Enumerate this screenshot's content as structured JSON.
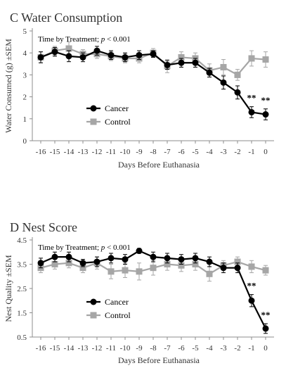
{
  "chart_data": [
    {
      "type": "line",
      "title": "C Water Consumption",
      "annotation": "Time by Treatment; p < 0.001",
      "annotation_prefix": "Time by Treatment; ",
      "annotation_italic": "p",
      "annotation_suffix": " < 0.001",
      "xlabel": "Days Before Euthanasia",
      "ylabel": "Water Consumed (g) ±SEM",
      "x": [
        -16,
        -15,
        -14,
        -13,
        -12,
        -11,
        -10,
        -9,
        -8,
        -7,
        -6,
        -5,
        -4,
        -3,
        -2,
        -1,
        0
      ],
      "x_tick_labels": [
        "-16",
        "-15",
        "-14",
        "-13",
        "-12",
        "-11",
        "-10",
        "-9",
        "-8",
        "-7",
        "-6",
        "-5",
        "-4",
        "-3",
        "-2",
        "-1",
        "0"
      ],
      "ylim": [
        0,
        5
      ],
      "y_ticks": [
        0,
        1,
        2,
        3,
        4,
        5
      ],
      "y_tick_labels": [
        "0",
        "1",
        "2",
        "3",
        "4",
        "5"
      ],
      "legend_position": "left-center",
      "series": [
        {
          "name": "Cancer",
          "color": "#000000",
          "marker": "circle",
          "values": [
            3.8,
            4.05,
            3.85,
            3.8,
            4.1,
            3.9,
            3.8,
            3.9,
            3.95,
            3.45,
            3.55,
            3.55,
            3.1,
            2.65,
            2.2,
            1.3,
            1.2
          ],
          "sem": [
            0.25,
            0.2,
            0.25,
            0.2,
            0.2,
            0.2,
            0.2,
            0.2,
            0.15,
            0.2,
            0.2,
            0.2,
            0.2,
            0.3,
            0.3,
            0.25,
            0.25
          ]
        },
        {
          "name": "Control",
          "color": "#a6a6a6",
          "marker": "square",
          "values": [
            3.8,
            4.1,
            4.2,
            3.95,
            3.95,
            3.85,
            3.75,
            3.75,
            4.0,
            3.4,
            3.8,
            3.75,
            3.2,
            3.35,
            3.0,
            3.75,
            3.7
          ],
          "sem": [
            0.25,
            0.2,
            0.3,
            0.2,
            0.2,
            0.2,
            0.2,
            0.2,
            0.2,
            0.3,
            0.25,
            0.25,
            0.3,
            0.35,
            0.25,
            0.35,
            0.35
          ]
        }
      ],
      "significance": [
        {
          "x": -1,
          "label": "**"
        },
        {
          "x": 0,
          "label": "**"
        }
      ]
    },
    {
      "type": "line",
      "title": "D Nest Score",
      "annotation": "Time by Treatment; p < 0.001",
      "annotation_prefix": "Time by Treatment; ",
      "annotation_italic": "p",
      "annotation_suffix": " < 0.001",
      "xlabel": "Days Before Euthanasia",
      "ylabel": "Nest Quality ±SEM",
      "x": [
        -16,
        -15,
        -14,
        -13,
        -12,
        -11,
        -10,
        -9,
        -8,
        -7,
        -6,
        -5,
        -4,
        -3,
        -2,
        -1,
        0
      ],
      "x_tick_labels": [
        "-16",
        "-15",
        "-14",
        "-13",
        "-12",
        "-11",
        "-10",
        "-9",
        "-8",
        "-7",
        "-6",
        "-5",
        "-4",
        "-3",
        "-2",
        "-1",
        "0"
      ],
      "ylim": [
        0.5,
        4.5
      ],
      "y_ticks": [
        0.5,
        1.5,
        2.5,
        3.5,
        4.5
      ],
      "y_tick_labels": [
        "0.5",
        "1.5",
        "2.5",
        "3.5",
        "4.5"
      ],
      "legend_position": "bottom-left",
      "series": [
        {
          "name": "Cancer",
          "color": "#000000",
          "marker": "circle",
          "values": [
            3.55,
            3.8,
            3.8,
            3.55,
            3.6,
            3.75,
            3.7,
            4.05,
            3.8,
            3.75,
            3.7,
            3.75,
            3.6,
            3.35,
            3.35,
            2.0,
            0.85
          ],
          "sem": [
            0.2,
            0.2,
            0.2,
            0.15,
            0.2,
            0.2,
            0.2,
            0.1,
            0.2,
            0.2,
            0.2,
            0.2,
            0.2,
            0.2,
            0.2,
            0.25,
            0.2
          ]
        },
        {
          "name": "Control",
          "color": "#a6a6a6",
          "marker": "square",
          "values": [
            3.35,
            3.5,
            3.55,
            3.35,
            3.55,
            3.2,
            3.25,
            3.2,
            3.35,
            3.5,
            3.45,
            3.5,
            3.1,
            3.45,
            3.6,
            3.4,
            3.25
          ],
          "sem": [
            0.2,
            0.2,
            0.2,
            0.2,
            0.25,
            0.3,
            0.3,
            0.35,
            0.3,
            0.25,
            0.25,
            0.25,
            0.3,
            0.2,
            0.2,
            0.25,
            0.2
          ]
        }
      ],
      "significance": [
        {
          "x": -1,
          "label": "**"
        },
        {
          "x": 0,
          "label": "**"
        }
      ]
    }
  ]
}
